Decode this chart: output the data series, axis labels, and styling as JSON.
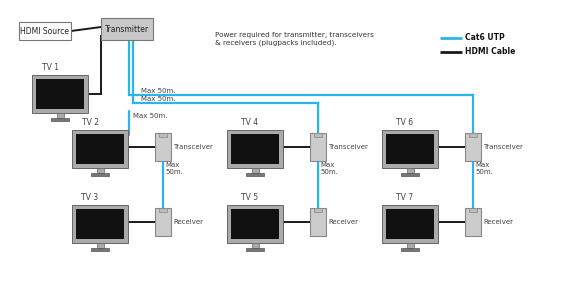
{
  "bg_color": "#ffffff",
  "cat6_color": "#29b5e8",
  "hdmi_color": "#1a1a1a",
  "cat6_lw": 1.6,
  "hdmi_lw": 1.4,
  "tv_body_color": "#aaaaaa",
  "tv_screen_color": "#111111",
  "tv_base_color": "#888888",
  "device_face_color": "#cccccc",
  "device_edge_color": "#888888",
  "source_face_color": "#ffffff",
  "source_edge_color": "#777777",
  "transmitter_face_color": "#c8c8c8",
  "transmitter_edge_color": "#777777",
  "title_note": "Power required for transmitter, transceivers\n& receivers (plugpacks included).",
  "legend_cat6": "Cat6 UTP",
  "legend_hdmi": "HDMI Cable",
  "label_source": "HDMI Source",
  "label_tx": "Transmitter",
  "label_tv1": "TV 1",
  "label_tv2": "TV 2",
  "label_tv3": "TV 3",
  "label_tv4": "TV 4",
  "label_tv5": "TV 5",
  "label_tv6": "TV 6",
  "label_tv7": "TV 7",
  "label_transceiver": "Transceiver",
  "label_receiver": "Receiver",
  "max50_horiz1": "Max 50m.",
  "max50_horiz2": "Max 50m.",
  "max50_vert0": "Max 50m.",
  "max50_vert1": "Max\n50m.",
  "max50_vert2": "Max\n50m.",
  "max50_vert3": "Max\n50m.",
  "text_color": "#444444"
}
